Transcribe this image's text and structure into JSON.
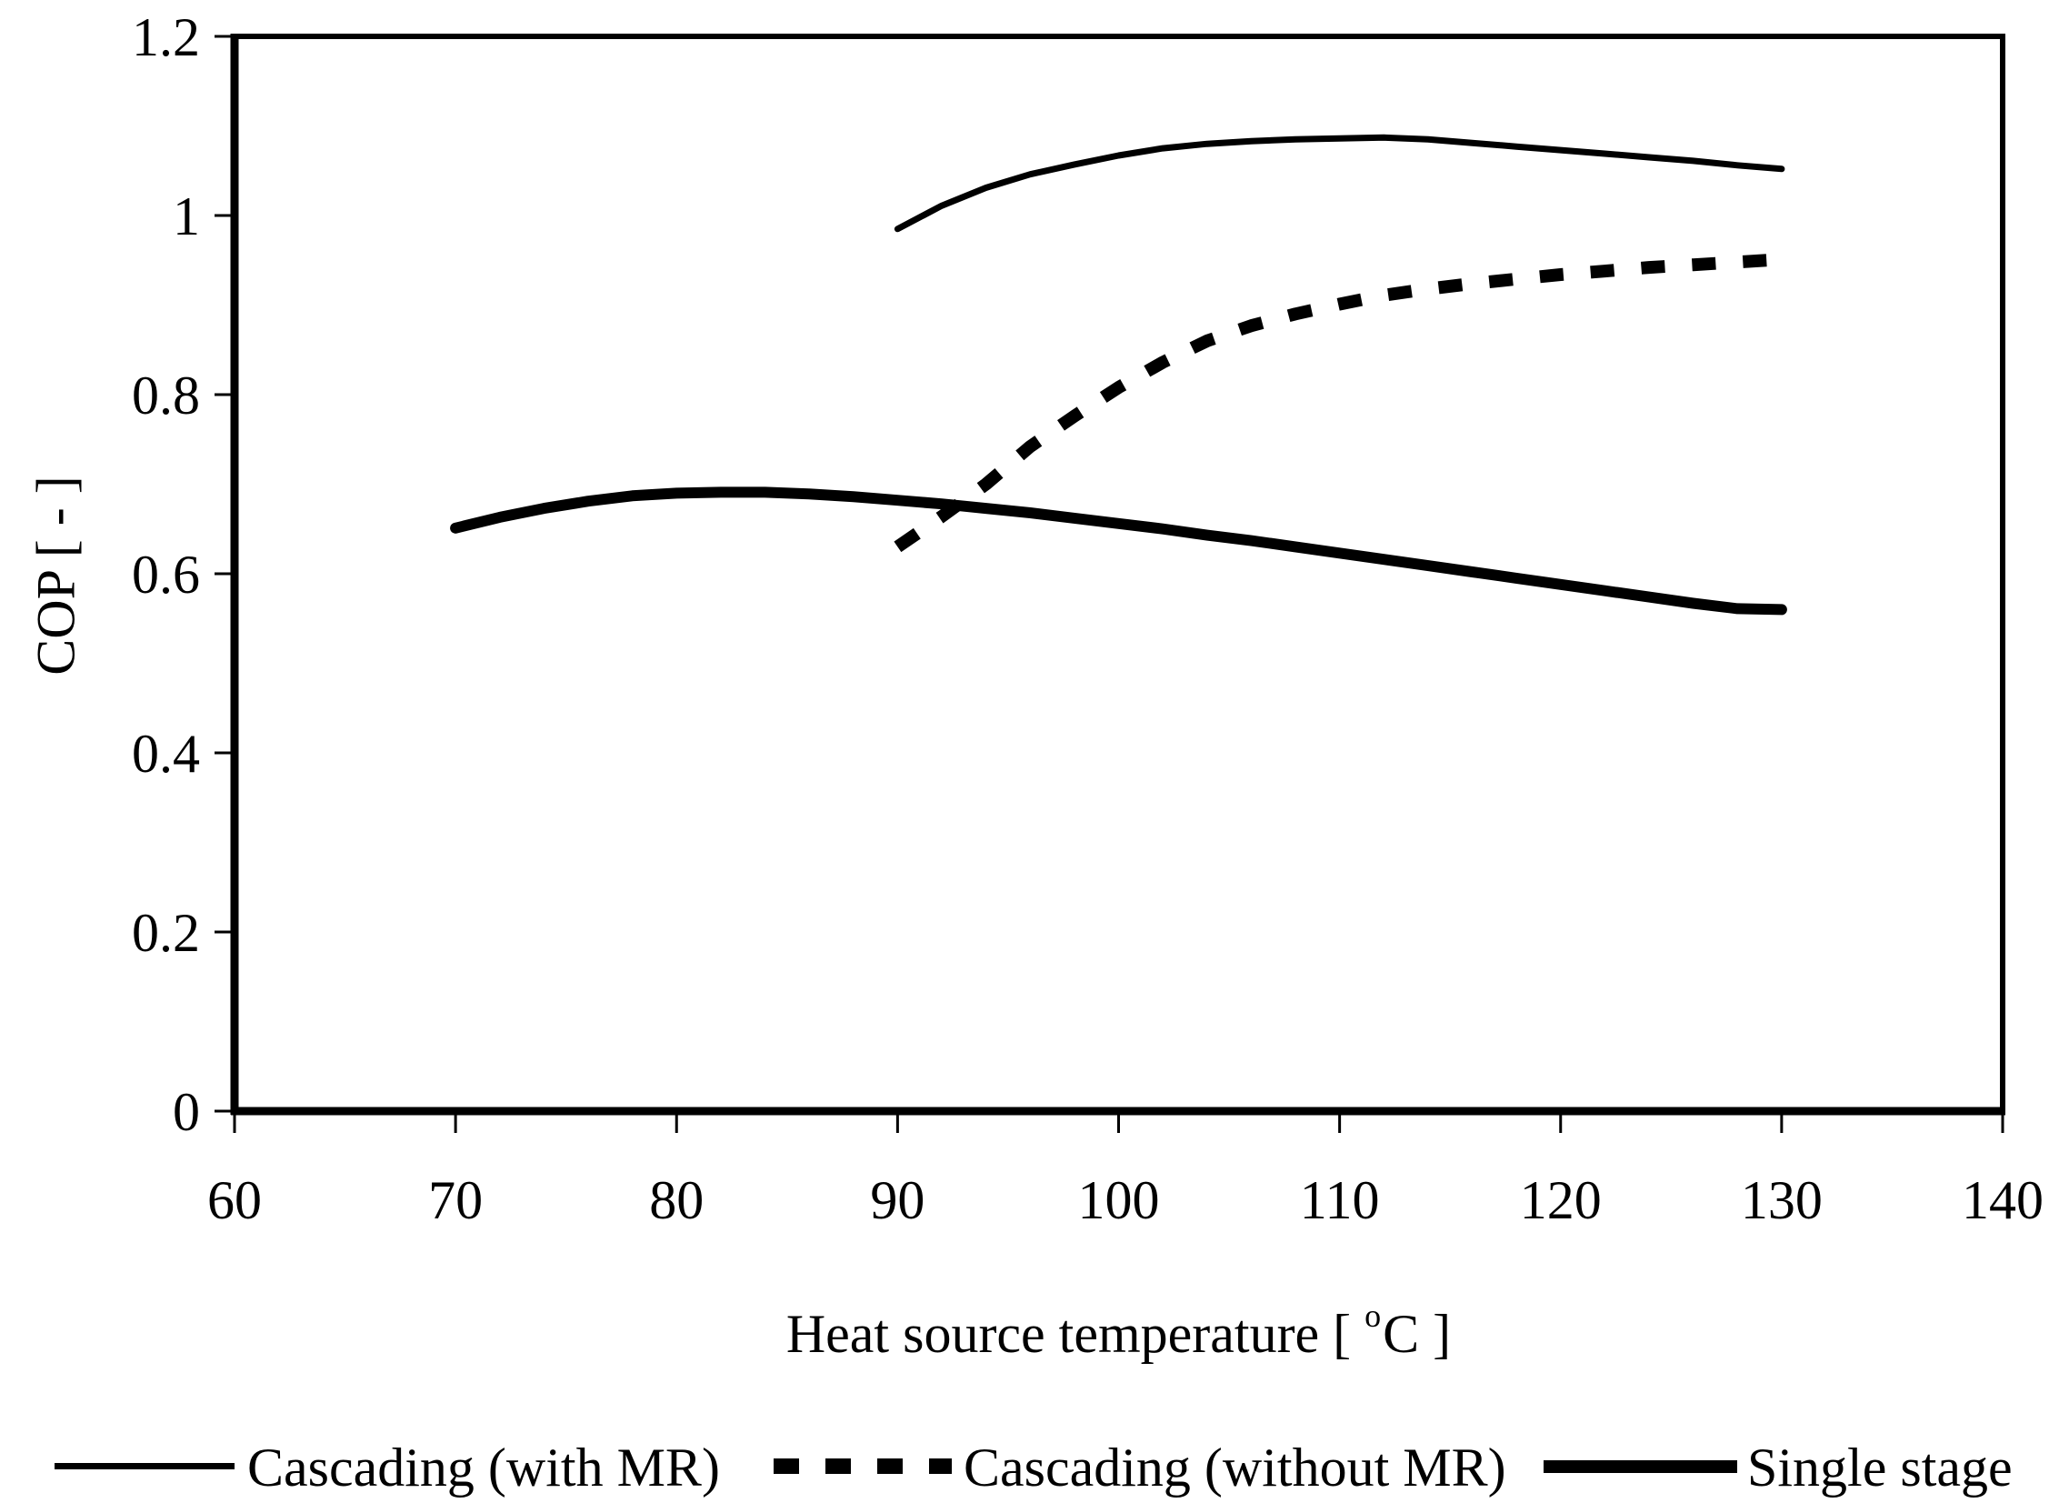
{
  "page": {
    "background": "#ffffff",
    "text_color": "#000000"
  },
  "chart_data": {
    "type": "line",
    "title": "",
    "xlabel_prefix": "Heat source temperature [ ",
    "xlabel_sup": "o",
    "xlabel_suffix": "C ]",
    "ylabel": "COP [ - ]",
    "xlim": [
      60,
      140
    ],
    "ylim": [
      0,
      1.2
    ],
    "grid": false,
    "legend_position": "bottom",
    "axis_color": "#000000",
    "x_ticks": {
      "values": [
        60,
        70,
        80,
        90,
        100,
        110,
        120,
        130,
        140
      ],
      "labels": [
        "60",
        "70",
        "80",
        "90",
        "100",
        "110",
        "120",
        "130",
        "140"
      ]
    },
    "y_ticks": {
      "values": [
        0,
        0.2,
        0.4,
        0.6,
        0.8,
        1,
        1.2
      ],
      "labels": [
        "0",
        "0.2",
        "0.4",
        "0.6",
        "0.8",
        "1",
        "1.2"
      ]
    },
    "series": [
      {
        "name": "Cascading (with MR)",
        "line": "thin-solid",
        "stroke_width": 7,
        "dash": null,
        "points": [
          [
            90,
            0.985
          ],
          [
            92,
            1.011
          ],
          [
            94,
            1.031
          ],
          [
            96,
            1.046
          ],
          [
            98,
            1.057
          ],
          [
            100,
            1.067
          ],
          [
            102,
            1.075
          ],
          [
            104,
            1.08
          ],
          [
            106,
            1.083
          ],
          [
            108,
            1.085
          ],
          [
            110,
            1.086
          ],
          [
            112,
            1.087
          ],
          [
            114,
            1.085
          ],
          [
            116,
            1.081
          ],
          [
            118,
            1.077
          ],
          [
            120,
            1.073
          ],
          [
            122,
            1.069
          ],
          [
            124,
            1.065
          ],
          [
            126,
            1.061
          ],
          [
            128,
            1.056
          ],
          [
            130,
            1.052
          ]
        ]
      },
      {
        "name": "Cascading (without MR)",
        "line": "dashed",
        "stroke_width": 14,
        "dash": "26 30",
        "points": [
          [
            90,
            0.63
          ],
          [
            92,
            0.664
          ],
          [
            94,
            0.7
          ],
          [
            96,
            0.742
          ],
          [
            98,
            0.776
          ],
          [
            100,
            0.808
          ],
          [
            102,
            0.836
          ],
          [
            104,
            0.86
          ],
          [
            106,
            0.877
          ],
          [
            108,
            0.89
          ],
          [
            110,
            0.901
          ],
          [
            112,
            0.911
          ],
          [
            114,
            0.918
          ],
          [
            116,
            0.924
          ],
          [
            118,
            0.929
          ],
          [
            120,
            0.934
          ],
          [
            122,
            0.938
          ],
          [
            124,
            0.942
          ],
          [
            126,
            0.945
          ],
          [
            128,
            0.948
          ],
          [
            130,
            0.951
          ]
        ]
      },
      {
        "name": "Single stage",
        "line": "thick-solid",
        "stroke_width": 12,
        "dash": null,
        "points": [
          [
            70,
            0.651
          ],
          [
            72,
            0.663
          ],
          [
            74,
            0.673
          ],
          [
            76,
            0.681
          ],
          [
            78,
            0.687
          ],
          [
            80,
            0.69
          ],
          [
            82,
            0.691
          ],
          [
            84,
            0.691
          ],
          [
            86,
            0.689
          ],
          [
            88,
            0.686
          ],
          [
            90,
            0.682
          ],
          [
            92,
            0.678
          ],
          [
            94,
            0.673
          ],
          [
            96,
            0.668
          ],
          [
            98,
            0.662
          ],
          [
            100,
            0.656
          ],
          [
            102,
            0.65
          ],
          [
            104,
            0.643
          ],
          [
            106,
            0.637
          ],
          [
            108,
            0.63
          ],
          [
            110,
            0.623
          ],
          [
            112,
            0.616
          ],
          [
            114,
            0.609
          ],
          [
            116,
            0.602
          ],
          [
            118,
            0.595
          ],
          [
            120,
            0.588
          ],
          [
            122,
            0.581
          ],
          [
            124,
            0.574
          ],
          [
            126,
            0.567
          ],
          [
            128,
            0.561
          ],
          [
            130,
            0.56
          ]
        ]
      }
    ]
  },
  "legend": {
    "items": [
      {
        "label": "Cascading (with MR)",
        "style": "thin-solid"
      },
      {
        "label": "Cascading (without MR)",
        "style": "dashed"
      },
      {
        "label": "Single stage",
        "style": "thick-solid"
      }
    ]
  }
}
